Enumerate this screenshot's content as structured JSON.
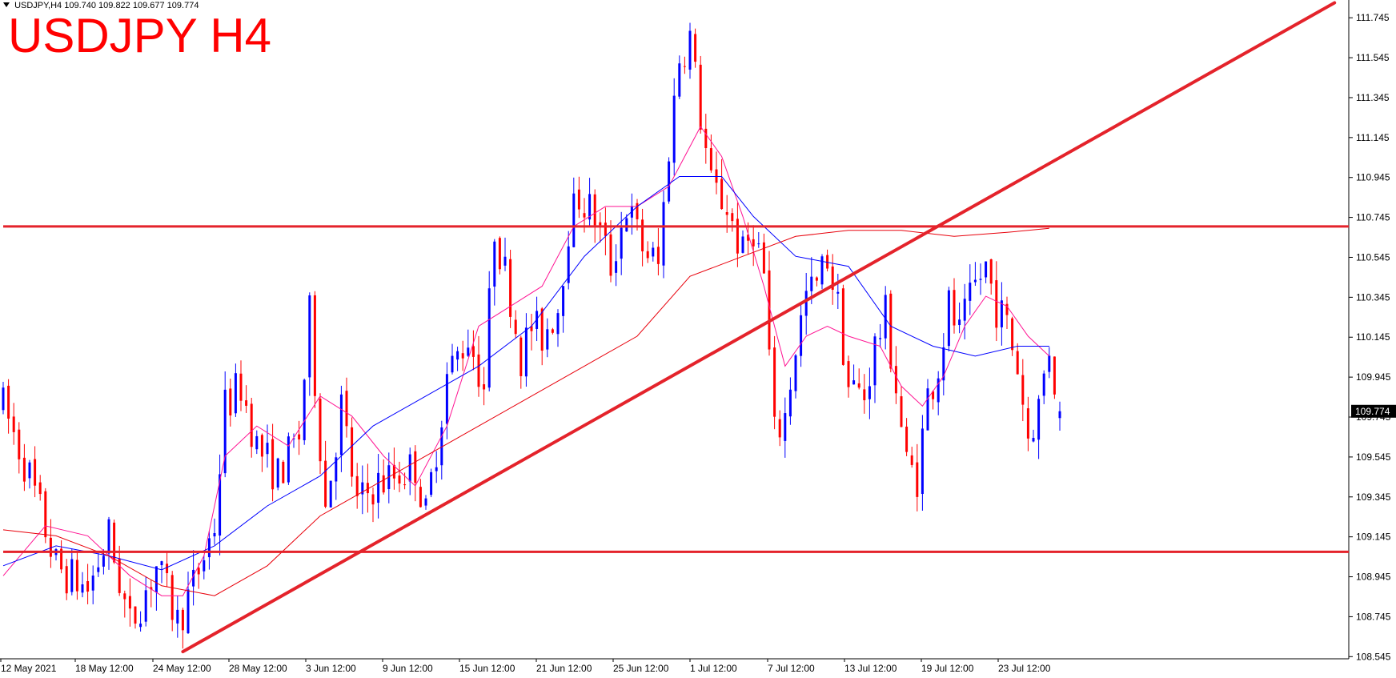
{
  "header": {
    "info": "USDJPY,H4  109.740 109.822 109.677 109.774",
    "title": "USDJPY H4"
  },
  "colors": {
    "bull": "#0000ff",
    "bear": "#ff0000",
    "trendline": "#e4232b",
    "ma_fast": "#ff1493",
    "ma_mid": "#0000ff",
    "ma_slow": "#e8000b",
    "axis": "#000000",
    "price_tag_bg": "#000000",
    "price_tag_text": "#ffffff"
  },
  "chart_data": {
    "type": "candlestick",
    "symbol": "USDJPY",
    "timeframe": "H4",
    "title": "USDJPY H4",
    "ohlc_last": {
      "open": 109.74,
      "high": 109.822,
      "low": 109.677,
      "close": 109.774
    },
    "current_price_label": "109.774",
    "ylim": [
      108.45,
      111.85
    ],
    "y_ticks": [
      "111.745",
      "111.545",
      "111.345",
      "111.145",
      "110.945",
      "110.745",
      "110.545",
      "110.345",
      "110.145",
      "109.945",
      "109.745",
      "109.545",
      "109.345",
      "109.145",
      "108.945",
      "108.745",
      "108.545"
    ],
    "x_ticks": [
      "12 May 2021",
      "18 May 12:00",
      "24 May 12:00",
      "28 May 12:00",
      "3 Jun 12:00",
      "9 Jun 12:00",
      "15 Jun 12:00",
      "21 Jun 12:00",
      "25 Jun 12:00",
      "1 Jul 12:00",
      "7 Jul 12:00",
      "13 Jul 12:00",
      "19 Jul 12:00",
      "23 Jul 12:00"
    ],
    "total_bars": 250,
    "horizontal_levels": [
      110.7,
      109.07
    ],
    "trendlines": [
      {
        "from": {
          "bar": 34,
          "price": 108.57
        },
        "to": {
          "bar": 252,
          "price": 111.82
        }
      }
    ],
    "price_path": [
      [
        0,
        109.8
      ],
      [
        5,
        109.45
      ],
      [
        10,
        109.0
      ],
      [
        16,
        108.88
      ],
      [
        20,
        109.15
      ],
      [
        24,
        108.7
      ],
      [
        29,
        109.0
      ],
      [
        33,
        108.72
      ],
      [
        36,
        108.9
      ],
      [
        40,
        109.2
      ],
      [
        42,
        109.8
      ],
      [
        45,
        109.9
      ],
      [
        48,
        109.6
      ],
      [
        52,
        109.45
      ],
      [
        56,
        109.65
      ],
      [
        58,
        110.25
      ],
      [
        61,
        109.3
      ],
      [
        64,
        109.8
      ],
      [
        67,
        109.3
      ],
      [
        70,
        109.4
      ],
      [
        74,
        109.45
      ],
      [
        78,
        109.5
      ],
      [
        80,
        109.25
      ],
      [
        84,
        109.95
      ],
      [
        88,
        110.15
      ],
      [
        91,
        109.9
      ],
      [
        93,
        110.7
      ],
      [
        96,
        110.35
      ],
      [
        98,
        110.05
      ],
      [
        100,
        110.2
      ],
      [
        102,
        110.15
      ],
      [
        105,
        110.3
      ],
      [
        107,
        110.7
      ],
      [
        109,
        110.85
      ],
      [
        112,
        110.75
      ],
      [
        115,
        110.5
      ],
      [
        118,
        110.8
      ],
      [
        121,
        110.6
      ],
      [
        124,
        110.5
      ],
      [
        126,
        111.1
      ],
      [
        128,
        111.55
      ],
      [
        130,
        111.65
      ],
      [
        132,
        111.25
      ],
      [
        134,
        110.9
      ],
      [
        137,
        110.8
      ],
      [
        140,
        110.55
      ],
      [
        142,
        110.7
      ],
      [
        144,
        110.45
      ],
      [
        146,
        109.65
      ],
      [
        148,
        109.75
      ],
      [
        150,
        110.1
      ],
      [
        152,
        110.35
      ],
      [
        154,
        110.4
      ],
      [
        156,
        110.55
      ],
      [
        158,
        110.3
      ],
      [
        160,
        109.9
      ],
      [
        163,
        109.85
      ],
      [
        165,
        110.1
      ],
      [
        167,
        110.25
      ],
      [
        169,
        109.9
      ],
      [
        171,
        109.5
      ],
      [
        173,
        109.45
      ],
      [
        175,
        109.85
      ],
      [
        177,
        110.0
      ],
      [
        179,
        110.3
      ],
      [
        181,
        110.15
      ],
      [
        184,
        110.4
      ],
      [
        186,
        110.5
      ],
      [
        188,
        110.3
      ],
      [
        190,
        110.2
      ],
      [
        192,
        110.0
      ],
      [
        194,
        109.65
      ],
      [
        196,
        109.8
      ],
      [
        198,
        110.1
      ],
      [
        200,
        109.75
      ]
    ],
    "moving_averages": [
      {
        "label": "fast",
        "points": [
          [
            0,
            108.95
          ],
          [
            8,
            109.2
          ],
          [
            16,
            109.15
          ],
          [
            24,
            108.95
          ],
          [
            30,
            108.85
          ],
          [
            34,
            108.85
          ],
          [
            38,
            109.05
          ],
          [
            42,
            109.55
          ],
          [
            48,
            109.7
          ],
          [
            54,
            109.6
          ],
          [
            60,
            109.85
          ],
          [
            66,
            109.75
          ],
          [
            72,
            109.55
          ],
          [
            78,
            109.4
          ],
          [
            84,
            109.7
          ],
          [
            90,
            110.2
          ],
          [
            96,
            110.3
          ],
          [
            102,
            110.4
          ],
          [
            108,
            110.7
          ],
          [
            114,
            110.8
          ],
          [
            120,
            110.8
          ],
          [
            126,
            110.9
          ],
          [
            132,
            111.2
          ],
          [
            136,
            111.05
          ],
          [
            140,
            110.75
          ],
          [
            144,
            110.4
          ],
          [
            148,
            110.0
          ],
          [
            152,
            110.15
          ],
          [
            156,
            110.2
          ],
          [
            160,
            110.15
          ],
          [
            166,
            110.1
          ],
          [
            170,
            109.9
          ],
          [
            174,
            109.8
          ],
          [
            178,
            109.95
          ],
          [
            182,
            110.2
          ],
          [
            186,
            110.35
          ],
          [
            190,
            110.3
          ],
          [
            194,
            110.15
          ],
          [
            198,
            110.05
          ]
        ]
      },
      {
        "label": "mid",
        "points": [
          [
            0,
            109.0
          ],
          [
            10,
            109.1
          ],
          [
            20,
            109.05
          ],
          [
            30,
            108.98
          ],
          [
            40,
            109.1
          ],
          [
            50,
            109.3
          ],
          [
            60,
            109.45
          ],
          [
            70,
            109.7
          ],
          [
            80,
            109.85
          ],
          [
            90,
            110.0
          ],
          [
            100,
            110.2
          ],
          [
            110,
            110.55
          ],
          [
            120,
            110.8
          ],
          [
            128,
            110.95
          ],
          [
            136,
            110.95
          ],
          [
            142,
            110.75
          ],
          [
            150,
            110.55
          ],
          [
            160,
            110.5
          ],
          [
            168,
            110.2
          ],
          [
            176,
            110.1
          ],
          [
            184,
            110.05
          ],
          [
            192,
            110.1
          ],
          [
            198,
            110.1
          ]
        ]
      },
      {
        "label": "slow",
        "points": [
          [
            0,
            109.18
          ],
          [
            10,
            109.15
          ],
          [
            20,
            109.05
          ],
          [
            30,
            108.9
          ],
          [
            40,
            108.85
          ],
          [
            50,
            109.0
          ],
          [
            60,
            109.25
          ],
          [
            70,
            109.4
          ],
          [
            80,
            109.55
          ],
          [
            90,
            109.7
          ],
          [
            100,
            109.85
          ],
          [
            110,
            110.0
          ],
          [
            120,
            110.15
          ],
          [
            130,
            110.45
          ],
          [
            140,
            110.55
          ],
          [
            150,
            110.65
          ],
          [
            160,
            110.68
          ],
          [
            170,
            110.68
          ],
          [
            180,
            110.65
          ],
          [
            190,
            110.67
          ],
          [
            198,
            110.69
          ]
        ]
      }
    ]
  }
}
